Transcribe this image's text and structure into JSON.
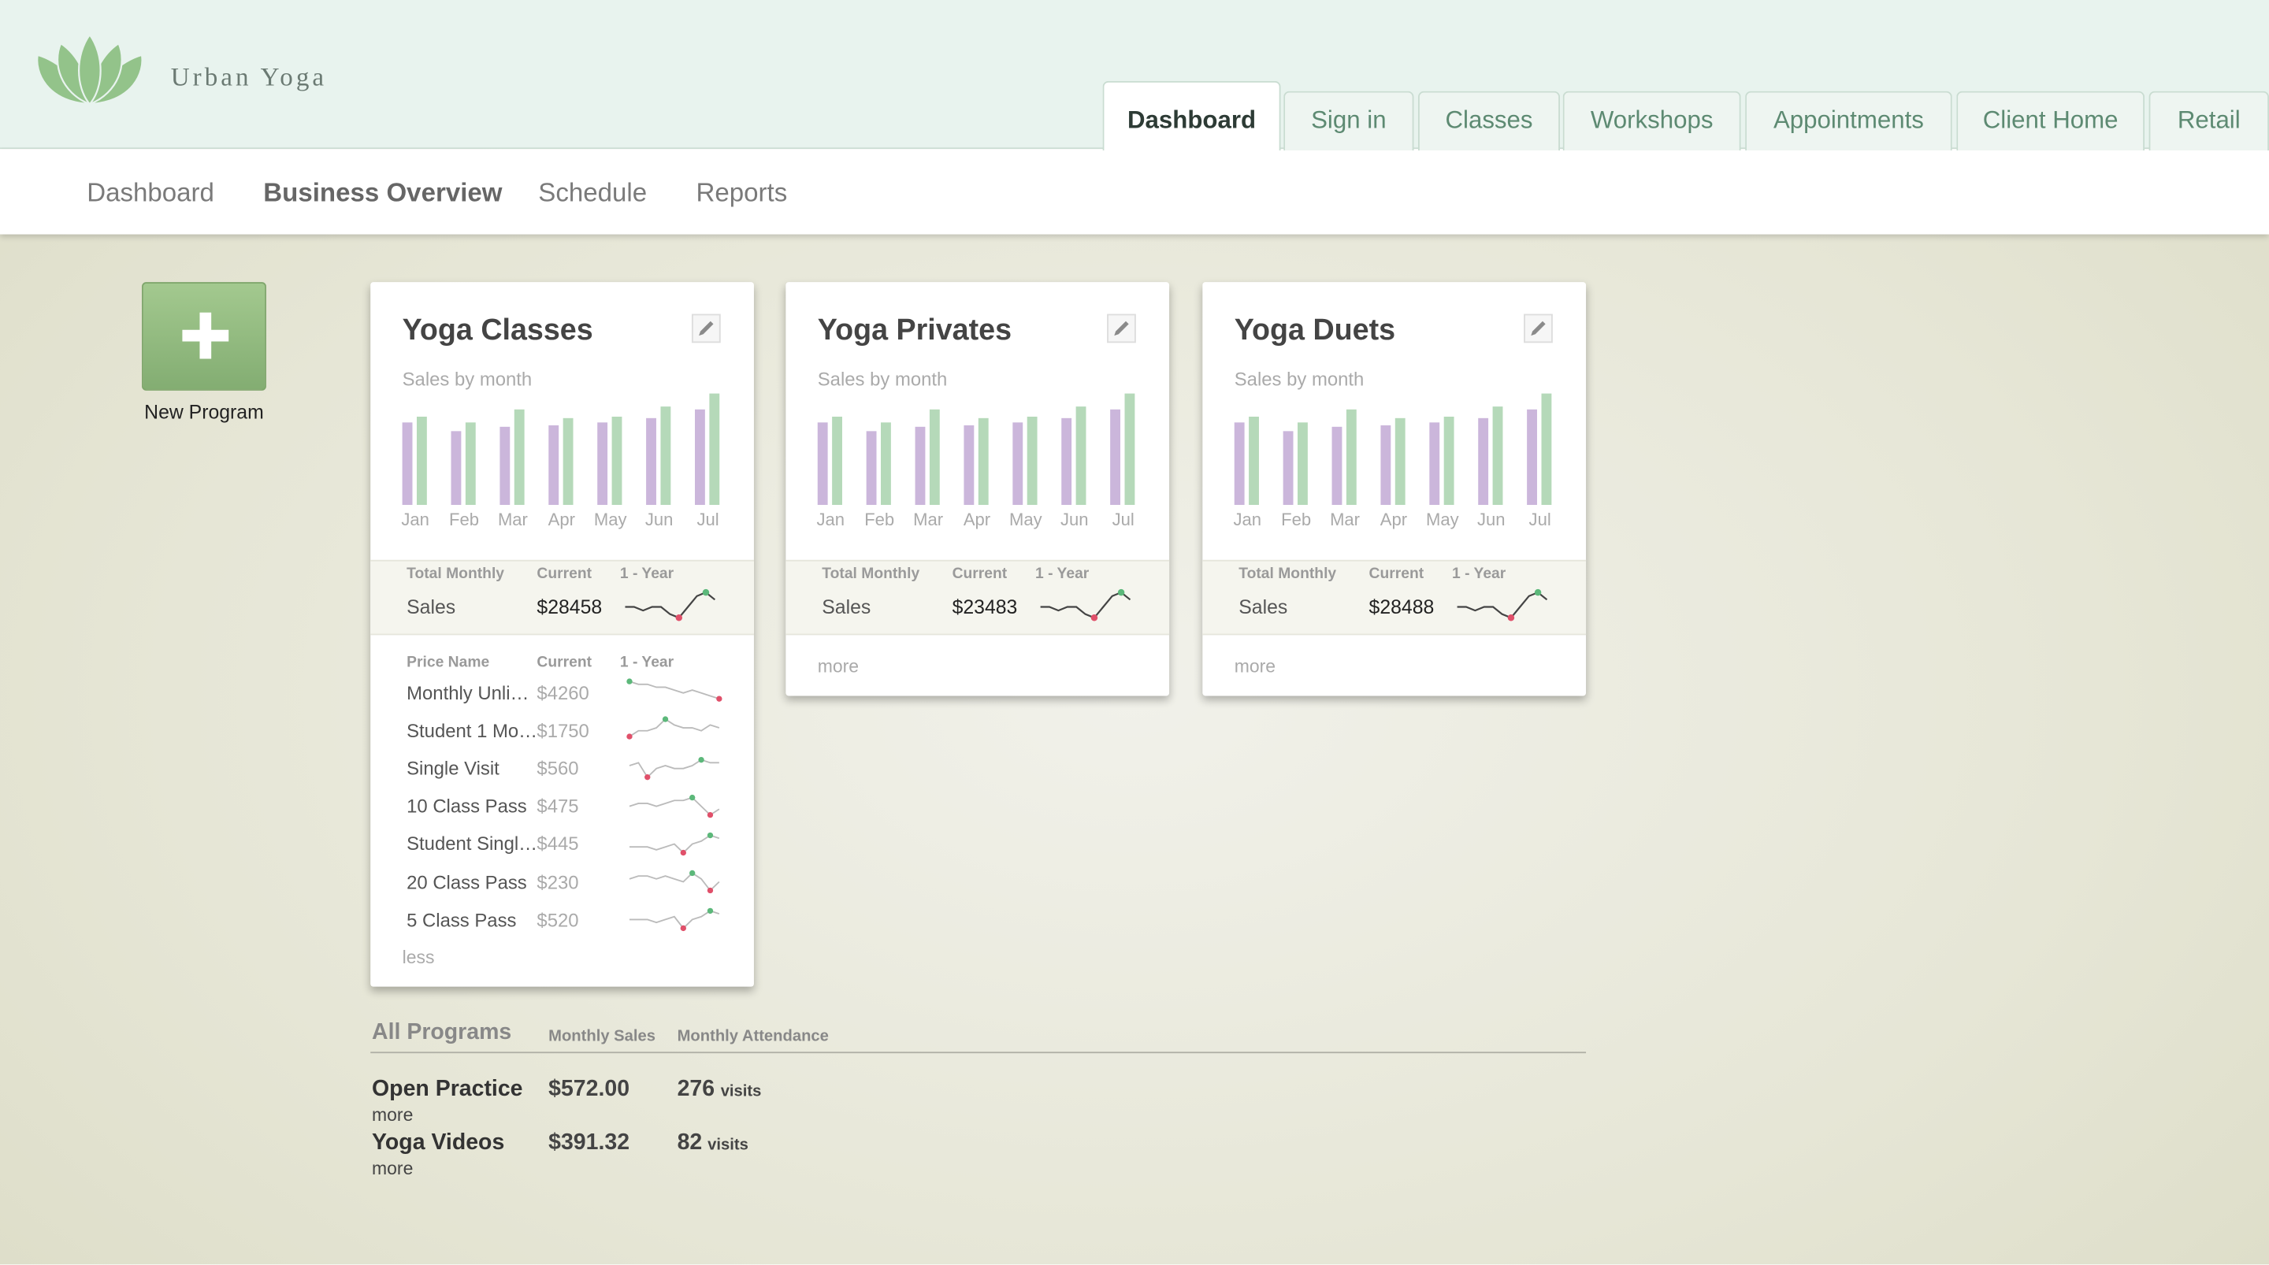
{
  "header": {
    "brand": "Urban Yoga",
    "tabs": [
      "Dashboard",
      "Sign in",
      "Classes",
      "Workshops",
      "Appointments",
      "Client Home",
      "Retail"
    ],
    "active_tab": 0
  },
  "subnav": {
    "items": [
      "Dashboard",
      "Business Overview",
      "Schedule",
      "Reports"
    ],
    "active": 1
  },
  "new_program": "New Program",
  "sparkline": {
    "high_color": "#5cb87a",
    "low_color": "#e0506a"
  },
  "cards": [
    {
      "title": "Yoga Classes",
      "subtitle": "Sales by month",
      "months": [
        "Jan",
        "Feb",
        "Mar",
        "Apr",
        "May",
        "Jun",
        "Jul"
      ],
      "series": [
        {
          "color": "#cbb6db",
          "values": [
            57,
            51,
            54,
            55,
            57,
            60,
            66
          ]
        },
        {
          "color": "#b5d9b9",
          "values": [
            61,
            57,
            66,
            60,
            61,
            68,
            77
          ]
        }
      ],
      "summary": {
        "headers": [
          "Total Monthly",
          "Current",
          "1 - Year"
        ],
        "label": "Sales",
        "current": "$28458",
        "trend": [
          3,
          3,
          2,
          3,
          3,
          1,
          0,
          3,
          6,
          7,
          5
        ]
      },
      "prices": {
        "headers": [
          "Price Name",
          "Current",
          "1 - Year"
        ],
        "rows": [
          {
            "name": "Monthly Unli…",
            "current": "$4260",
            "trend": [
              8,
              7,
              7,
              6,
              6,
              5,
              4,
              5,
              4,
              3,
              2
            ]
          },
          {
            "name": "Student 1 Mo…",
            "current": "$1750",
            "trend": [
              2,
              4,
              4,
              5,
              8,
              6,
              5,
              5,
              4,
              6,
              5
            ]
          },
          {
            "name": "Single Visit",
            "current": "$560",
            "trend": [
              5,
              6,
              1,
              4,
              5,
              4,
              4,
              5,
              7,
              6,
              6
            ]
          },
          {
            "name": "10 Class Pass",
            "current": "$475",
            "trend": [
              4,
              5,
              5,
              4,
              5,
              6,
              6,
              7,
              4,
              1,
              3
            ]
          },
          {
            "name": "Student Singl…",
            "current": "$445",
            "trend": [
              3,
              3,
              3,
              2,
              3,
              4,
              1,
              4,
              5,
              7,
              6
            ]
          },
          {
            "name": "20 Class Pass",
            "current": "$230",
            "trend": [
              5,
              6,
              6,
              5,
              6,
              5,
              4,
              7,
              5,
              1,
              4
            ]
          },
          {
            "name": "5 Class Pass",
            "current": "$520",
            "trend": [
              4,
              4,
              4,
              3,
              4,
              5,
              1,
              4,
              5,
              7,
              6
            ]
          }
        ]
      },
      "toggle": "less"
    },
    {
      "title": "Yoga Privates",
      "subtitle": "Sales by month",
      "months": [
        "Jan",
        "Feb",
        "Mar",
        "Apr",
        "May",
        "Jun",
        "Jul"
      ],
      "series": [
        {
          "color": "#cbb6db",
          "values": [
            57,
            51,
            54,
            55,
            57,
            60,
            66
          ]
        },
        {
          "color": "#b5d9b9",
          "values": [
            61,
            57,
            66,
            60,
            61,
            68,
            77
          ]
        }
      ],
      "summary": {
        "headers": [
          "Total Monthly",
          "Current",
          "1 - Year"
        ],
        "label": "Sales",
        "current": "$23483",
        "trend": [
          3,
          3,
          2,
          3,
          3,
          1,
          0,
          3,
          6,
          7,
          5
        ]
      },
      "toggle": "more"
    },
    {
      "title": "Yoga Duets",
      "subtitle": "Sales by month",
      "months": [
        "Jan",
        "Feb",
        "Mar",
        "Apr",
        "May",
        "Jun",
        "Jul"
      ],
      "series": [
        {
          "color": "#cbb6db",
          "values": [
            57,
            51,
            54,
            55,
            57,
            60,
            66
          ]
        },
        {
          "color": "#b5d9b9",
          "values": [
            61,
            57,
            66,
            60,
            61,
            68,
            77
          ]
        }
      ],
      "summary": {
        "headers": [
          "Total Monthly",
          "Current",
          "1 - Year"
        ],
        "label": "Sales",
        "current": "$28488",
        "trend": [
          3,
          3,
          2,
          3,
          3,
          1,
          0,
          3,
          6,
          7,
          5
        ]
      },
      "toggle": "more"
    }
  ],
  "all_programs": {
    "title": "All Programs",
    "headers": [
      "Monthly Sales",
      "Monthly Attendance"
    ],
    "rows": [
      {
        "name": "Open Practice",
        "sales": "$572.00",
        "attendance": 276,
        "unit": "visits",
        "more": "more"
      },
      {
        "name": "Yoga Videos",
        "sales": "$391.32",
        "attendance": 82,
        "unit": "visits",
        "more": "more"
      }
    ]
  }
}
